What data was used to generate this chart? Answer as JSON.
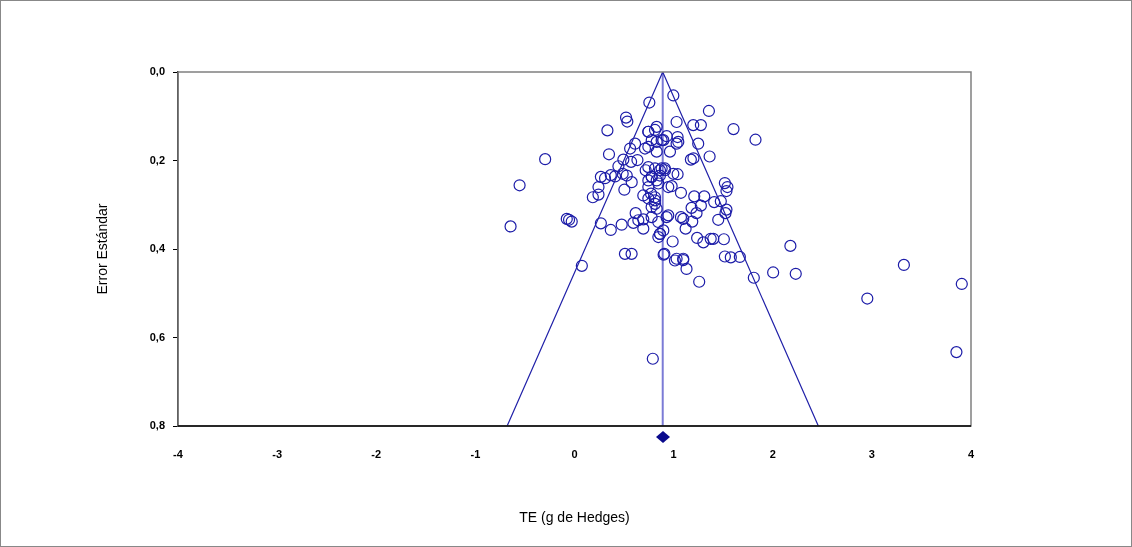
{
  "chart_data": {
    "type": "scatter",
    "xlabel": "TE (g de Hedges)",
    "ylabel": "Error Estándar",
    "xlim": [
      -4,
      4
    ],
    "xticks": [
      -4,
      -3,
      -2,
      -1,
      0,
      1,
      2,
      3,
      4
    ],
    "ylim": [
      0.8,
      0
    ],
    "yticks": [
      {
        "value": 0,
        "label": "0,0"
      },
      {
        "value": 0.2,
        "label": "0,2"
      },
      {
        "value": 0.4,
        "label": "0,4"
      },
      {
        "value": 0.6,
        "label": "0,6"
      },
      {
        "value": 0.8,
        "label": "0,8"
      }
    ],
    "marker": "circle",
    "legend": false,
    "ref_lines": [
      {
        "axis": "x",
        "value": 0.89,
        "color": "#7b7bd6"
      }
    ],
    "series": [
      {
        "type": "line",
        "color": "#2020a8",
        "marker": "none",
        "x": [
          -0.68,
          0.89,
          2.46
        ],
        "values": [
          0.8,
          0,
          0.8
        ]
      },
      {
        "color": "#1c1ca8",
        "x": [
          -0.645,
          -0.554,
          -0.296,
          -0.078,
          -0.055,
          -0.028,
          0.332,
          0.52,
          0.533,
          0.755,
          0.348,
          0.266,
          0.308,
          0.366,
          0.242,
          0.185,
          0.242,
          0.503,
          0.493,
          0.443,
          0.571,
          0.635,
          0.561,
          0.611,
          0.409,
          0.486,
          0.527,
          0.577,
          0.711,
          0.745,
          0.812,
          0.829,
          0.896,
          0.718,
          0.778,
          0.745,
          0.772,
          0.812,
          0.778,
          0.829,
          0.862,
          0.912,
          0.266,
          0.366,
          0.476,
          0.617,
          0.644,
          0.694,
          0.594,
          0.778,
          0.845,
          0.862,
          0.896,
          0.929,
          0.509,
          0.576,
          0.899,
          0.79,
          0.074,
          0.997,
          1.356,
          1.03,
          1.198,
          1.275,
          1.604,
          1.826,
          1.248,
          1.174,
          1.2,
          1.363,
          0.829,
          0.745,
          0.879,
          0.93,
          1.04,
          1.047,
          1.03,
          0.963,
          0.829,
          0.779,
          0.745,
          0.745,
          0.812,
          0.879,
          0.913,
          0.997,
          1.04,
          0.779,
          0.862,
          0.745,
          0.846,
          0.946,
          0.98,
          1.074,
          0.812,
          0.745,
          0.812,
          0.829,
          0.694,
          1.517,
          1.543,
          1.533,
          1.208,
          1.309,
          1.409,
          1.476,
          1.275,
          1.181,
          1.231,
          1.533,
          1.523,
          1.074,
          1.097,
          1.188,
          1.45,
          0.694,
          0.862,
          0.846,
          1.121,
          0.946,
          1.237,
          1.3,
          1.374,
          1.4,
          1.507,
          0.99,
          2.178,
          1.517,
          1.668,
          1.03,
          1.097,
          0.906,
          1.013,
          1.097,
          1.13,
          1.258,
          1.577,
          1.809,
          2.004,
          2.232,
          3.323,
          3.907,
          2.954,
          3.853
        ],
        "values": [
          0.349,
          0.256,
          0.197,
          0.332,
          0.334,
          0.338,
          0.132,
          0.103,
          0.112,
          0.069,
          0.186,
          0.237,
          0.24,
          0.233,
          0.26,
          0.283,
          0.277,
          0.266,
          0.198,
          0.213,
          0.203,
          0.199,
          0.173,
          0.162,
          0.236,
          0.23,
          0.234,
          0.249,
          0.173,
          0.135,
          0.131,
          0.158,
          0.154,
          0.222,
          0.237,
          0.26,
          0.275,
          0.29,
          0.305,
          0.245,
          0.222,
          0.218,
          0.342,
          0.357,
          0.345,
          0.319,
          0.335,
          0.333,
          0.341,
          0.328,
          0.339,
          0.366,
          0.358,
          0.328,
          0.411,
          0.411,
          0.413,
          0.648,
          0.438,
          0.053,
          0.088,
          0.113,
          0.12,
          0.12,
          0.129,
          0.153,
          0.162,
          0.198,
          0.195,
          0.191,
          0.124,
          0.135,
          0.154,
          0.145,
          0.147,
          0.158,
          0.162,
          0.18,
          0.18,
          0.154,
          0.169,
          0.215,
          0.218,
          0.218,
          0.222,
          0.23,
          0.231,
          0.237,
          0.234,
          0.245,
          0.252,
          0.26,
          0.258,
          0.273,
          0.283,
          0.286,
          0.298,
          0.309,
          0.279,
          0.251,
          0.26,
          0.269,
          0.281,
          0.281,
          0.294,
          0.292,
          0.302,
          0.307,
          0.319,
          0.311,
          0.319,
          0.328,
          0.332,
          0.338,
          0.334,
          0.354,
          0.366,
          0.373,
          0.354,
          0.324,
          0.375,
          0.385,
          0.377,
          0.377,
          0.378,
          0.383,
          0.393,
          0.417,
          0.418,
          0.422,
          0.422,
          0.411,
          0.426,
          0.425,
          0.445,
          0.474,
          0.419,
          0.465,
          0.453,
          0.456,
          0.436,
          0.479,
          0.512,
          0.633
        ]
      }
    ]
  }
}
